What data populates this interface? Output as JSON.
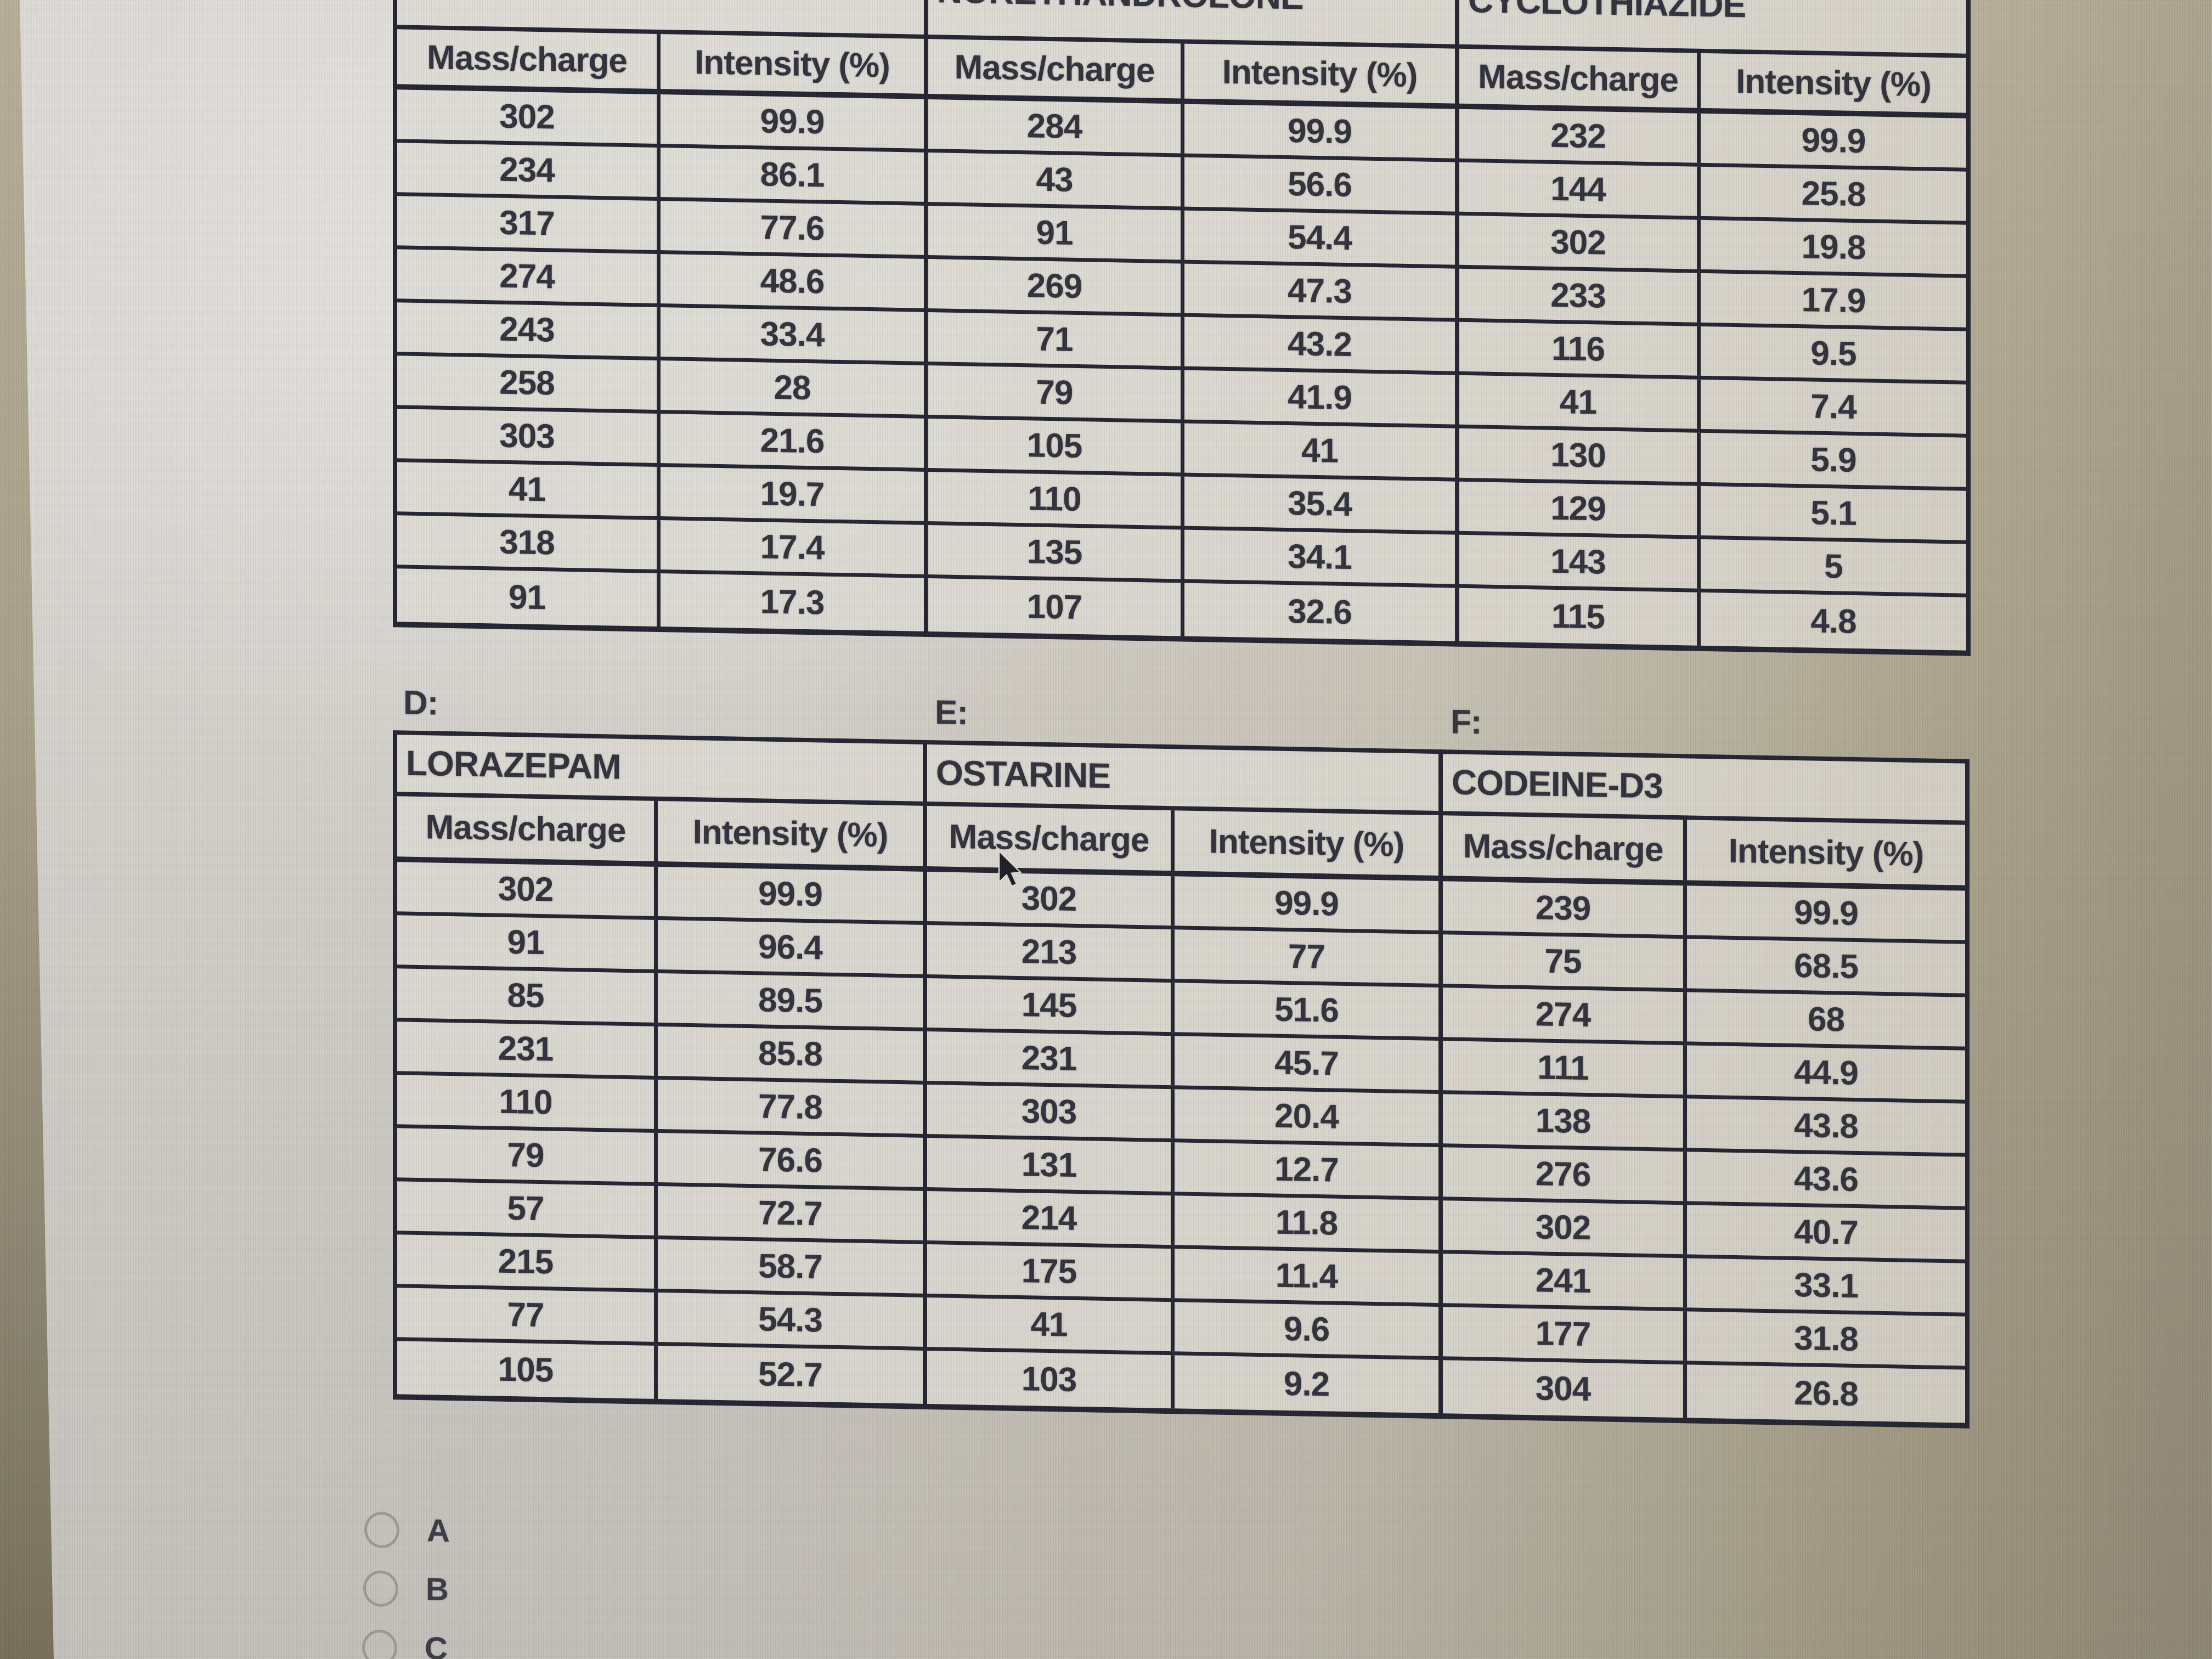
{
  "col_headers": [
    "Mass/charge",
    "Intensity (%)"
  ],
  "top_tables": [
    {
      "title": "",
      "rows": [
        [
          "302",
          "99.9"
        ],
        [
          "234",
          "86.1"
        ],
        [
          "317",
          "77.6"
        ],
        [
          "274",
          "48.6"
        ],
        [
          "243",
          "33.4"
        ],
        [
          "258",
          "28"
        ],
        [
          "303",
          "21.6"
        ],
        [
          "41",
          "19.7"
        ],
        [
          "318",
          "17.4"
        ],
        [
          "91",
          "17.3"
        ]
      ]
    },
    {
      "title": "NORETHANDROLONE",
      "rows": [
        [
          "284",
          "99.9"
        ],
        [
          "43",
          "56.6"
        ],
        [
          "91",
          "54.4"
        ],
        [
          "269",
          "47.3"
        ],
        [
          "71",
          "43.2"
        ],
        [
          "79",
          "41.9"
        ],
        [
          "105",
          "41"
        ],
        [
          "110",
          "35.4"
        ],
        [
          "135",
          "34.1"
        ],
        [
          "107",
          "32.6"
        ]
      ]
    },
    {
      "title": "CYCLOTHIAZIDE",
      "rows": [
        [
          "232",
          "99.9"
        ],
        [
          "144",
          "25.8"
        ],
        [
          "302",
          "19.8"
        ],
        [
          "233",
          "17.9"
        ],
        [
          "116",
          "9.5"
        ],
        [
          "41",
          "7.4"
        ],
        [
          "130",
          "5.9"
        ],
        [
          "129",
          "5.1"
        ],
        [
          "143",
          "5"
        ],
        [
          "115",
          "4.8"
        ]
      ]
    }
  ],
  "bottom_tables": [
    {
      "label": "D:",
      "title": "LORAZEPAM",
      "rows": [
        [
          "302",
          "99.9"
        ],
        [
          "91",
          "96.4"
        ],
        [
          "85",
          "89.5"
        ],
        [
          "231",
          "85.8"
        ],
        [
          "110",
          "77.8"
        ],
        [
          "79",
          "76.6"
        ],
        [
          "57",
          "72.7"
        ],
        [
          "215",
          "58.7"
        ],
        [
          "77",
          "54.3"
        ],
        [
          "105",
          "52.7"
        ]
      ]
    },
    {
      "label": "E:",
      "title": "OSTARINE",
      "rows": [
        [
          "302",
          "99.9"
        ],
        [
          "213",
          "77"
        ],
        [
          "145",
          "51.6"
        ],
        [
          "231",
          "45.7"
        ],
        [
          "303",
          "20.4"
        ],
        [
          "131",
          "12.7"
        ],
        [
          "214",
          "11.8"
        ],
        [
          "175",
          "11.4"
        ],
        [
          "41",
          "9.6"
        ],
        [
          "103",
          "9.2"
        ]
      ]
    },
    {
      "label": "F:",
      "title": "CODEINE-D3",
      "rows": [
        [
          "239",
          "99.9"
        ],
        [
          "75",
          "68.5"
        ],
        [
          "274",
          "68"
        ],
        [
          "111",
          "44.9"
        ],
        [
          "138",
          "43.8"
        ],
        [
          "276",
          "43.6"
        ],
        [
          "302",
          "40.7"
        ],
        [
          "241",
          "33.1"
        ],
        [
          "177",
          "31.8"
        ],
        [
          "304",
          "26.8"
        ]
      ]
    }
  ],
  "options": [
    "A",
    "B",
    "C"
  ],
  "icons": {
    "cursor": "mouse-cursor-arrow"
  },
  "colors": {
    "table_border": "#23242f",
    "table_text": "#30313b",
    "table_bg": "#dfdcd5",
    "page_bg_light": "#d6d3cc",
    "page_bg_tan": "#9b9380",
    "bezel": "#a9a189",
    "radio_outline": "#9d9a8e"
  }
}
